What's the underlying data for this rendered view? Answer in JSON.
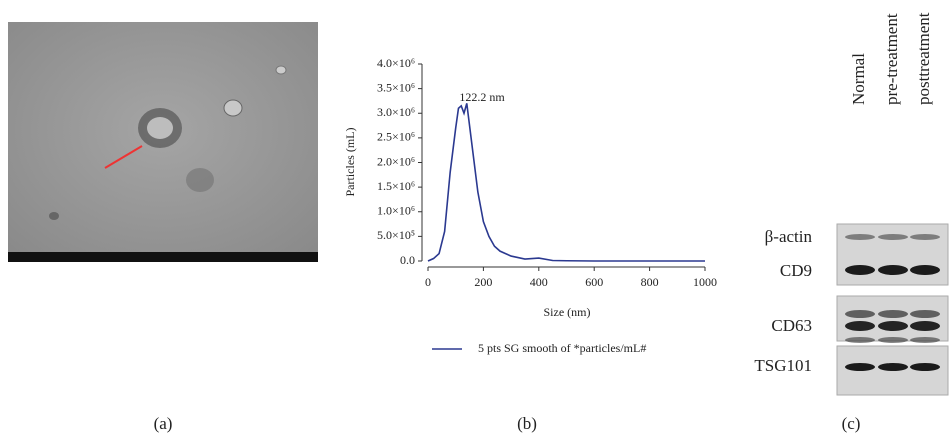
{
  "chart_data": {
    "type": "line",
    "annotation": "122.2 nm",
    "x_label": "Size (nm)",
    "y_label": "Particles (mL)",
    "x": [
      0,
      20,
      40,
      60,
      80,
      100,
      110,
      120,
      130,
      140,
      160,
      180,
      200,
      220,
      240,
      260,
      280,
      300,
      350,
      400,
      450,
      500,
      600,
      700,
      800,
      900,
      1000
    ],
    "series": [
      {
        "name": "5 pts SG smooth of *particles/mL#",
        "color": "#2b3990",
        "values": [
          0,
          50000,
          150000,
          600000,
          1800000,
          2700000,
          3100000,
          3150000,
          3000000,
          3200000,
          2300000,
          1400000,
          800000,
          500000,
          300000,
          200000,
          150000,
          100000,
          40000,
          60000,
          10000,
          5000,
          0,
          0,
          0,
          0,
          0
        ]
      }
    ],
    "xlim": [
      0,
      1000
    ],
    "xticks": [
      0,
      200,
      400,
      600,
      800,
      1000
    ],
    "ylim": [
      0,
      4000000
    ],
    "yticks": [
      {
        "value": 0,
        "label": "0.0"
      },
      {
        "value": 500000,
        "label": "5.0×10⁵"
      },
      {
        "value": 1000000,
        "label": "1.0×10⁶"
      },
      {
        "value": 1500000,
        "label": "1.5×10⁶"
      },
      {
        "value": 2000000,
        "label": "2.0×10⁶"
      },
      {
        "value": 2500000,
        "label": "2.5×10⁶"
      },
      {
        "value": 3000000,
        "label": "3.0×10⁶"
      },
      {
        "value": 3500000,
        "label": "3.5×10⁶"
      },
      {
        "value": 4000000,
        "label": "4.0×10⁶"
      }
    ],
    "grid": false
  },
  "blot": {
    "columns": [
      "Normal",
      "pre-treatment",
      "posttreatment"
    ],
    "rows": [
      "β-actin",
      "CD9",
      "CD63",
      "TSG101"
    ]
  },
  "panels": [
    "(a)",
    "(b)",
    "(c)"
  ]
}
